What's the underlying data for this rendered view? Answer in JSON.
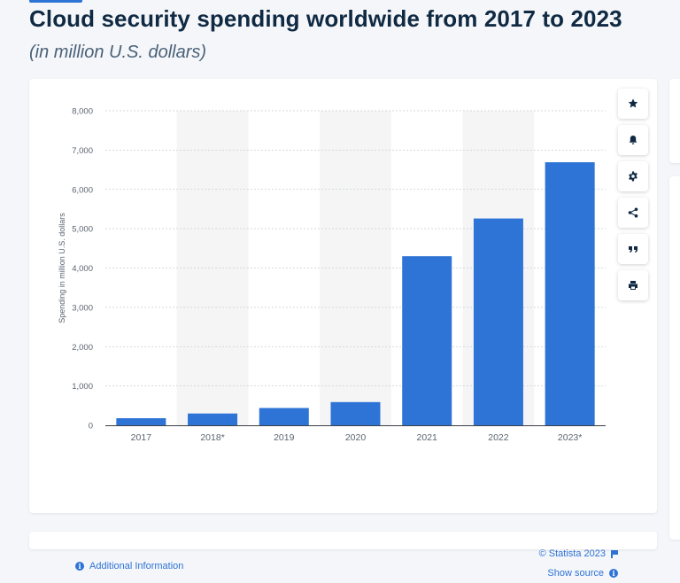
{
  "header": {
    "title": "Cloud security spending worldwide from 2017 to 2023",
    "subtitle": "(in million U.S. dollars)"
  },
  "colors": {
    "bar": "#2e73d6",
    "band": "#f5f5f5",
    "grid": "#c8ced6",
    "axis_text": "#5b6470"
  },
  "chart_data": {
    "type": "bar",
    "categories": [
      "2017",
      "2018*",
      "2019",
      "2020",
      "2021",
      "2022",
      "2023*"
    ],
    "values": [
      180,
      300,
      440,
      590,
      4300,
      5260,
      6690
    ],
    "ylabel": "Spending in million U.S. dollars",
    "ylim": [
      0,
      8000
    ],
    "yticks": [
      "0",
      "1,000",
      "2,000",
      "3,000",
      "4,000",
      "5,000",
      "6,000",
      "7,000",
      "8,000"
    ],
    "grid": true,
    "alternating_bands": true
  },
  "toolbar": {
    "icons": [
      "star-icon",
      "bell-icon",
      "gear-icon",
      "share-icon",
      "quote-icon",
      "print-icon"
    ]
  },
  "footer": {
    "additional_info": "Additional Information",
    "credit": "© Statista 2023",
    "show_source": "Show source"
  }
}
